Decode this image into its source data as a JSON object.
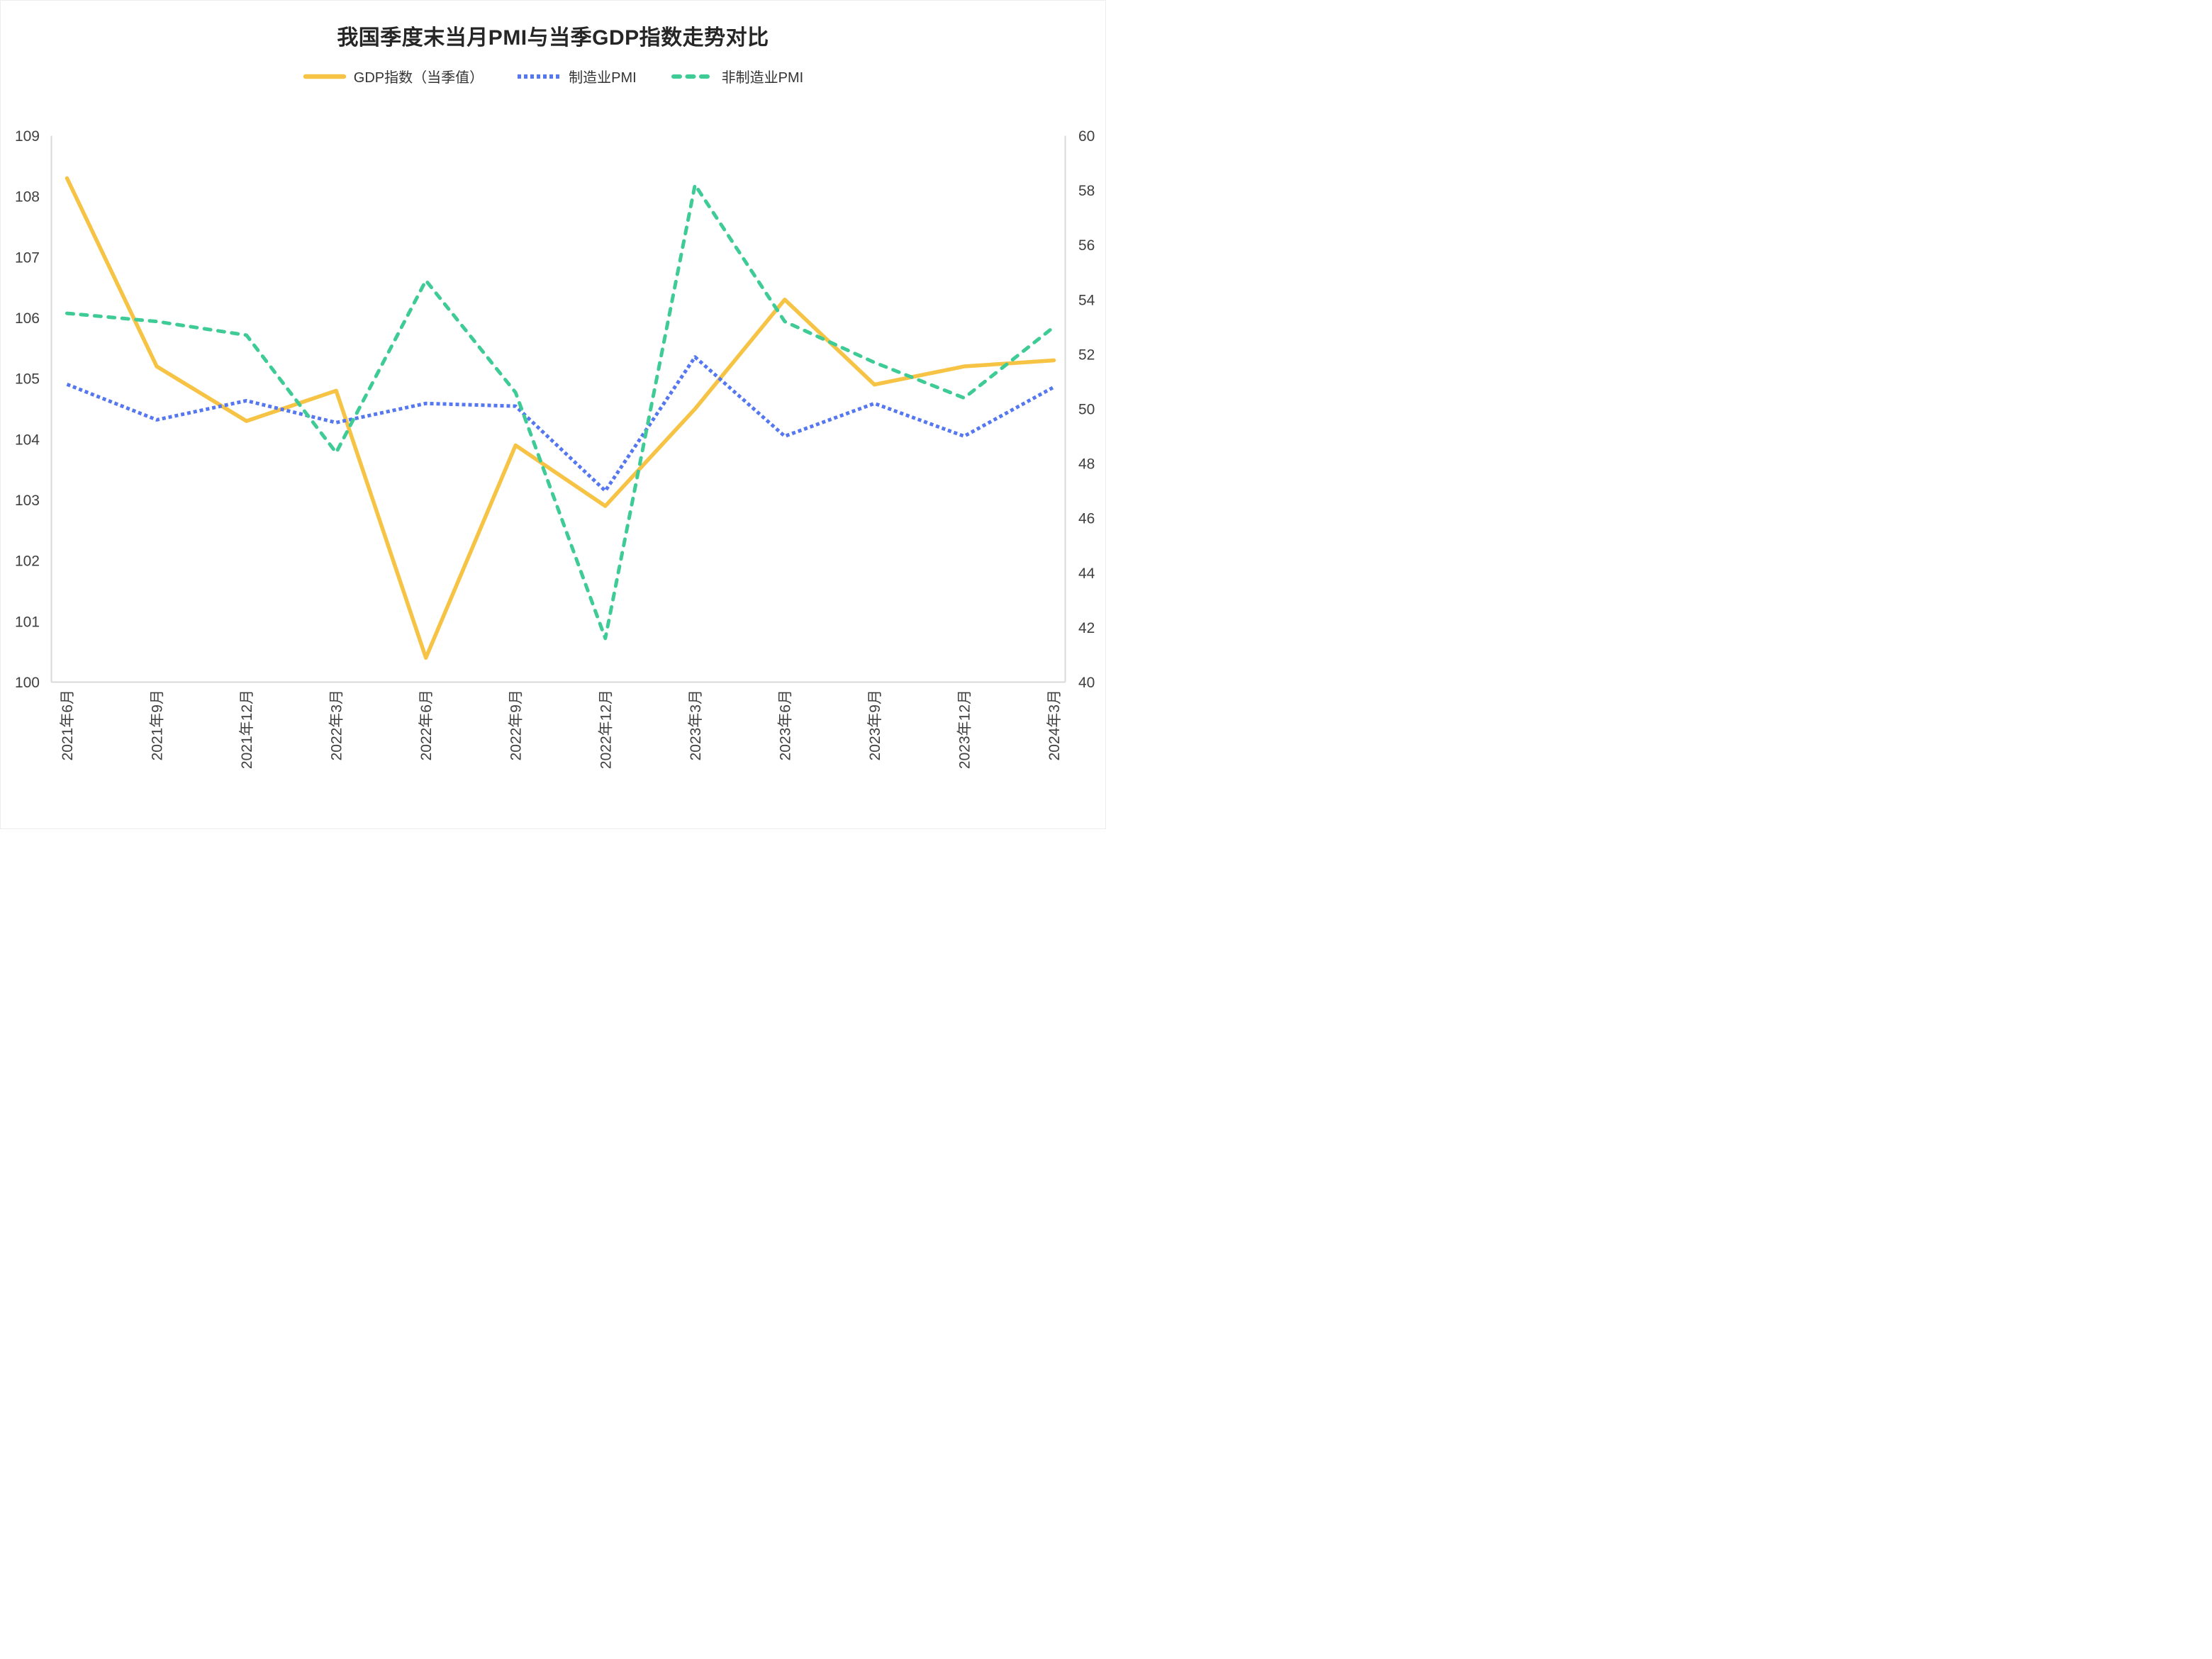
{
  "page": {
    "background": "#ffffff"
  },
  "chart_data": {
    "type": "line",
    "title": "我国季度末当月PMI与当季GDP指数走势对比",
    "categories": [
      "2021年6月",
      "2021年9月",
      "2021年12月",
      "2022年3月",
      "2022年6月",
      "2022年9月",
      "2022年12月",
      "2023年3月",
      "2023年6月",
      "2023年9月",
      "2023年12月",
      "2024年3月"
    ],
    "series": [
      {
        "name": "GDP指数（当季值）",
        "axis": "left",
        "line_style": "solid",
        "color": "#F6C344",
        "values": [
          108.3,
          105.2,
          104.3,
          104.8,
          100.4,
          103.9,
          102.9,
          104.5,
          106.3,
          104.9,
          105.2,
          105.3
        ]
      },
      {
        "name": "制造业PMI",
        "axis": "right",
        "line_style": "dotted",
        "color": "#5577F0",
        "values": [
          50.9,
          49.6,
          50.3,
          49.5,
          50.2,
          50.1,
          47.0,
          51.9,
          49.0,
          50.2,
          49.0,
          50.8
        ]
      },
      {
        "name": "非制造业PMI",
        "axis": "right",
        "line_style": "dashed",
        "color": "#3FCB96",
        "values": [
          53.5,
          53.2,
          52.7,
          48.4,
          54.7,
          50.6,
          41.6,
          58.2,
          53.2,
          51.7,
          50.4,
          53.0
        ]
      }
    ],
    "left_axis": {
      "min": 100,
      "max": 109,
      "ticks": [
        "109",
        "108",
        "107",
        "106",
        "105",
        "104",
        "103",
        "102",
        "101",
        "100"
      ]
    },
    "right_axis": {
      "min": 40,
      "max": 60,
      "ticks": [
        "60",
        "58",
        "56",
        "54",
        "52",
        "50",
        "48",
        "46",
        "44",
        "42",
        "40"
      ]
    },
    "grid": false,
    "legend_position": "top",
    "axis_line_color": "#D9D9D9",
    "text_color": "#404040"
  }
}
